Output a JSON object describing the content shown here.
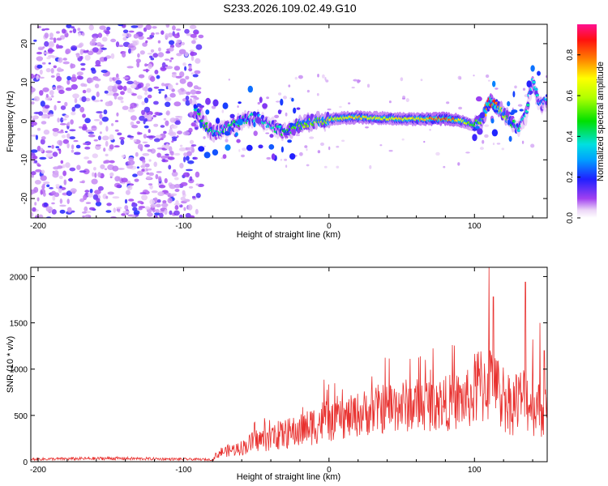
{
  "title": "S233.2026.109.02.49.G10",
  "chart_data": [
    {
      "type": "heatmap",
      "name": "spectrogram",
      "xlabel": "Height of straight line (km)",
      "ylabel": "Frequency (Hz)",
      "xlim": [
        -205,
        150
      ],
      "ylim": [
        -25,
        25
      ],
      "xticks": [
        -200,
        -100,
        0,
        100
      ],
      "yticks": [
        -20,
        -10,
        0,
        10,
        20
      ],
      "colorbar": {
        "label": "Normalized spectral amplitude",
        "range": [
          0,
          0.95
        ],
        "ticks": [
          0.0,
          0.2,
          0.4,
          0.6,
          0.8
        ]
      },
      "features": {
        "noise_region_x": [
          -205,
          -88
        ],
        "signal_ridge": {
          "x": [
            -92,
            -85,
            -80,
            -70,
            -60,
            -50,
            -40,
            -30,
            -20,
            -10,
            0,
            10,
            20,
            30,
            40,
            50,
            60,
            70,
            80,
            90,
            100,
            105,
            110,
            115,
            120,
            125,
            130,
            135,
            140,
            145,
            150
          ],
          "freq_hz": [
            3,
            -1,
            -3,
            -2,
            0,
            1,
            -1,
            -3,
            -1,
            0,
            0.5,
            0.8,
            1,
            0.8,
            0.7,
            0.6,
            0.5,
            0.6,
            0.6,
            0.2,
            -1,
            0,
            5,
            4,
            2,
            0,
            -2,
            1,
            10,
            4,
            5
          ],
          "amplitude": [
            0.45,
            0.5,
            0.45,
            0.4,
            0.45,
            0.4,
            0.35,
            0.45,
            0.55,
            0.6,
            0.65,
            0.7,
            0.75,
            0.7,
            0.7,
            0.72,
            0.72,
            0.8,
            0.85,
            0.75,
            0.5,
            0.6,
            0.9,
            0.85,
            0.6,
            0.5,
            0.4,
            0.4,
            0.35,
            0.3,
            0.3
          ]
        }
      }
    },
    {
      "type": "line",
      "name": "snr",
      "xlabel": "Height of straight line (km)",
      "ylabel": "SNR (10 * v/v)",
      "xlim": [
        -205,
        150
      ],
      "ylim": [
        0,
        2100
      ],
      "xticks": [
        -200,
        -100,
        0,
        100
      ],
      "yticks": [
        0,
        500,
        1000,
        1500,
        2000
      ],
      "color": "#e8302e",
      "envelope": {
        "x": [
          -205,
          -150,
          -100,
          -80,
          -75,
          -60,
          -50,
          -40,
          -30,
          -20,
          -10,
          0,
          10,
          20,
          30,
          40,
          50,
          60,
          70,
          80,
          90,
          100,
          105,
          110,
          115,
          120,
          125,
          130,
          135,
          140,
          145,
          150
        ],
        "y": [
          30,
          40,
          30,
          25,
          100,
          150,
          230,
          250,
          300,
          330,
          400,
          470,
          530,
          590,
          640,
          680,
          700,
          710,
          730,
          730,
          760,
          800,
          820,
          860,
          750,
          700,
          620,
          650,
          700,
          600,
          580,
          500
        ]
      },
      "peaks": [
        {
          "x": -35,
          "y": 440
        },
        {
          "x": -18,
          "y": 590
        },
        {
          "x": 110,
          "y": 2100
        },
        {
          "x": 113,
          "y": 1780
        },
        {
          "x": 135,
          "y": 1940
        },
        {
          "x": 140,
          "y": 1320
        },
        {
          "x": 145,
          "y": 1500
        },
        {
          "x": 148,
          "y": 1200
        }
      ]
    }
  ]
}
